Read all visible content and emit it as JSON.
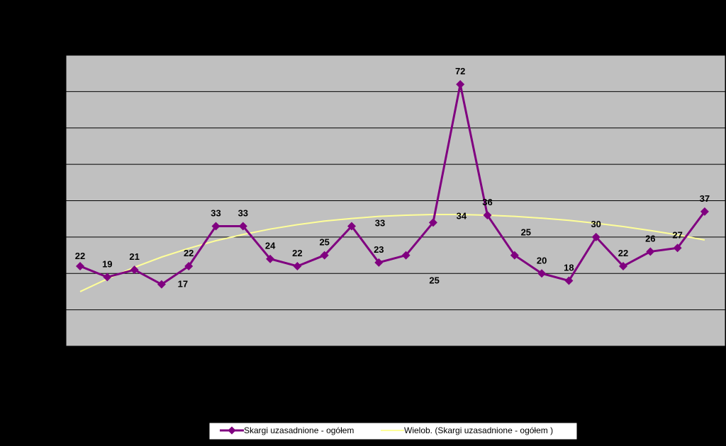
{
  "chart_data": {
    "type": "line",
    "title": "",
    "xlabel": "",
    "ylabel": "",
    "ylim": [
      0,
      80
    ],
    "grid": true,
    "legend_position": "bottom",
    "colors": {
      "background": "#000000",
      "plot_area": "#c0c0c0",
      "gridline": "#000000",
      "series_line": "#800080",
      "trend_line": "#ffff99",
      "label_text": "#000000"
    },
    "series": [
      {
        "name": "Skargi uzasadnione - ogółem",
        "values": [
          22,
          19,
          21,
          17,
          22,
          33,
          33,
          24,
          22,
          25,
          33,
          23,
          25,
          34,
          72,
          36,
          25,
          20,
          18,
          30,
          22,
          26,
          27,
          37
        ],
        "labels": [
          "22",
          "19",
          "21",
          "17",
          "22",
          "33",
          "33",
          "24",
          "22",
          "25",
          "33",
          "23",
          "25",
          "34",
          "72",
          "36",
          "25",
          "20",
          "18",
          "30",
          "22",
          "26",
          "27",
          "37"
        ]
      }
    ],
    "trendline": {
      "name": "Wielob. (Skargi uzasadnione - ogółem  )",
      "type": "polynomial",
      "values": [
        15,
        18.5,
        21.7,
        24.5,
        26.9,
        29.0,
        30.7,
        32.2,
        33.4,
        34.4,
        35.1,
        35.7,
        36.0,
        36.2,
        36.2,
        36.0,
        35.7,
        35.2,
        34.6,
        33.8,
        32.9,
        31.8,
        30.6,
        29.2
      ]
    }
  }
}
